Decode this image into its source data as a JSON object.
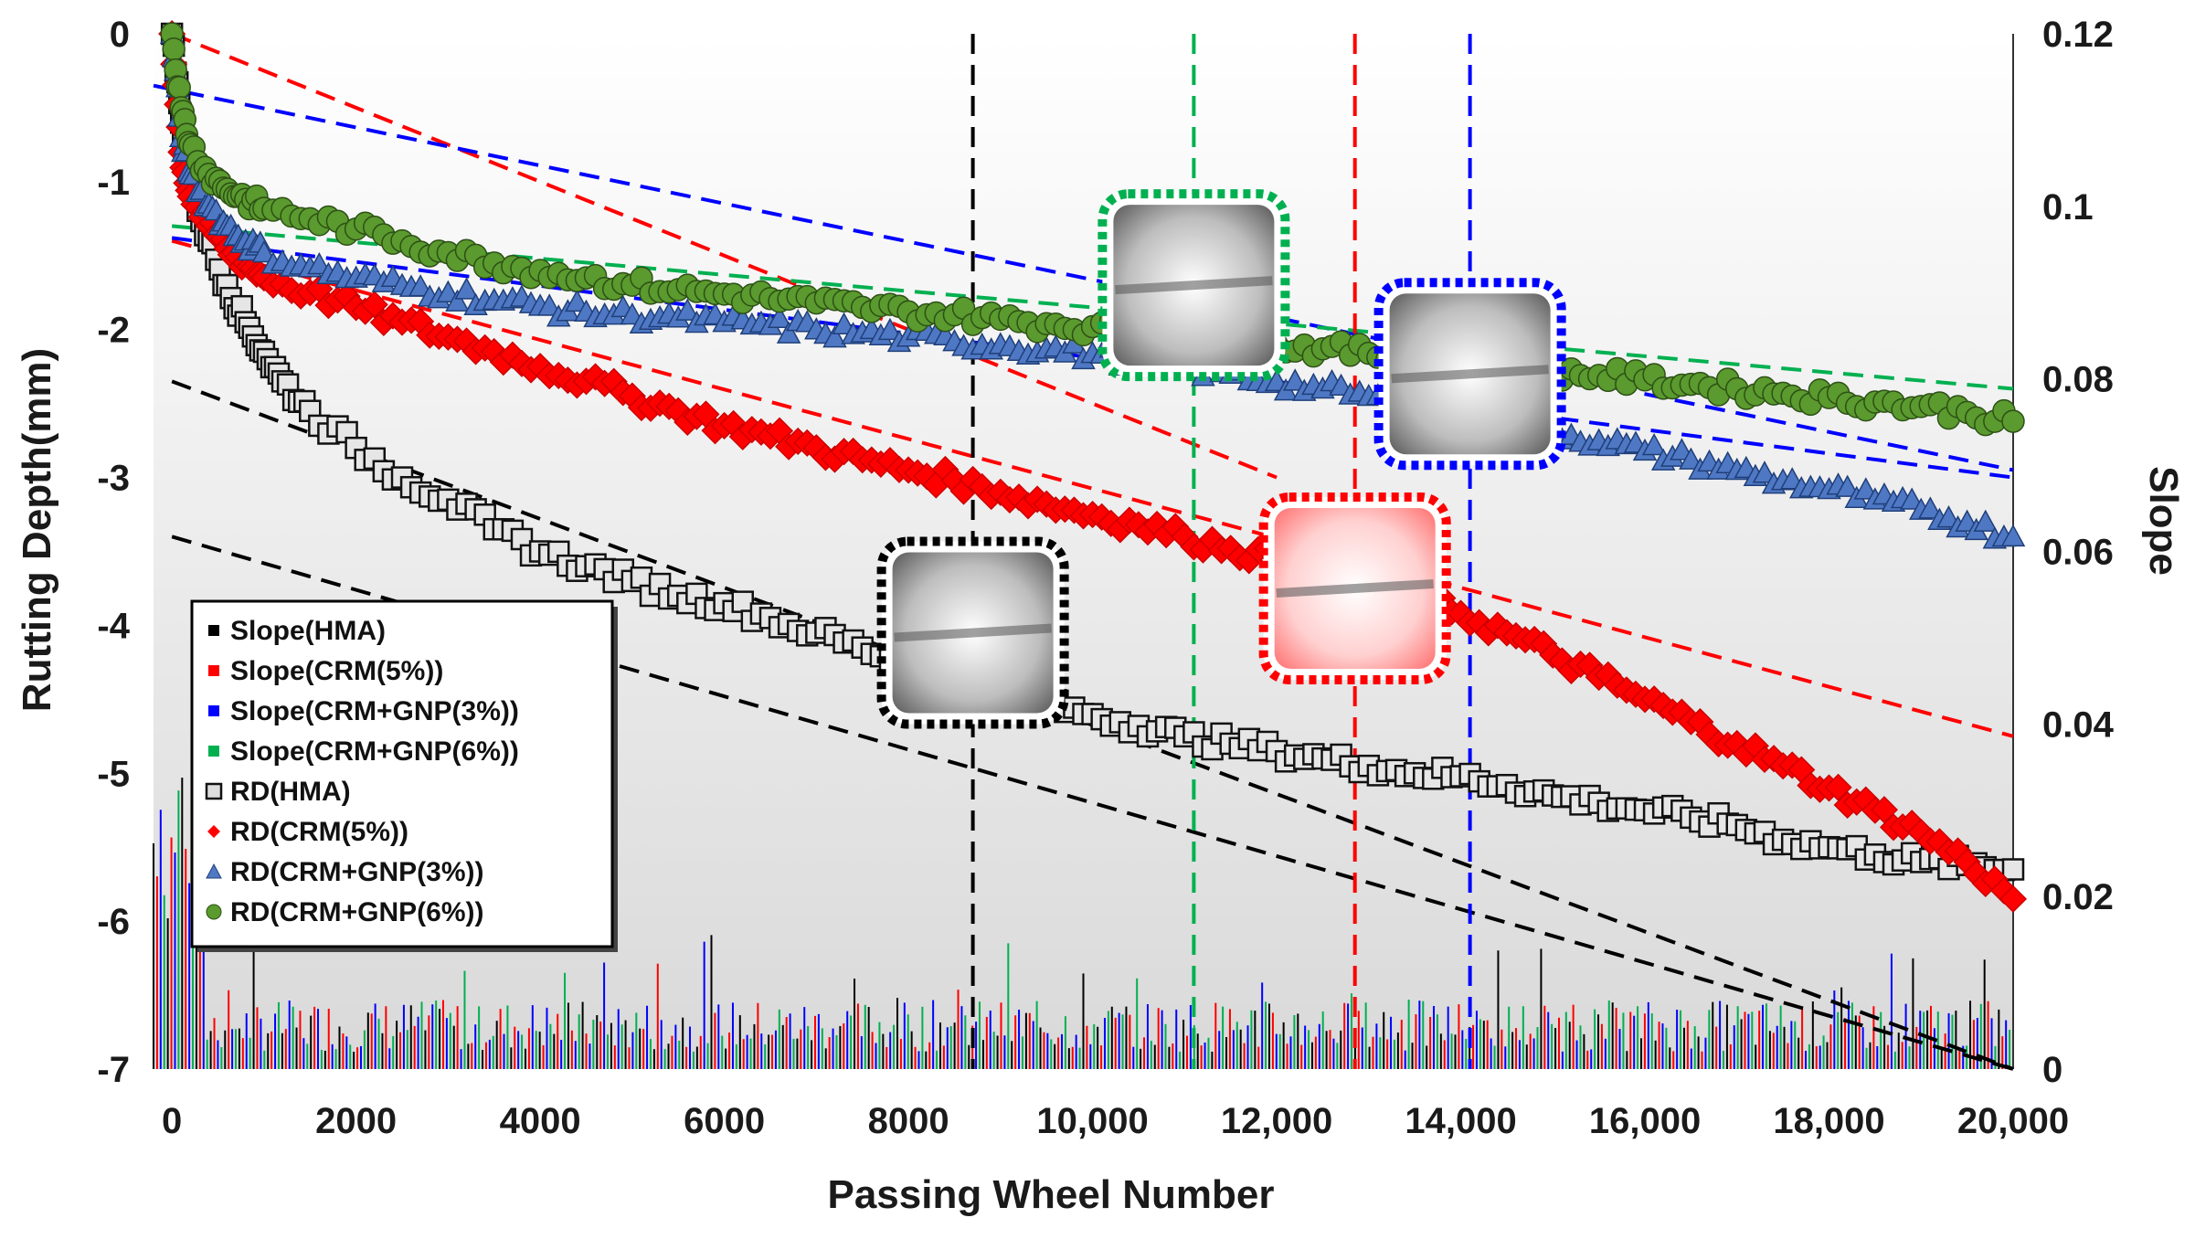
{
  "chart_data": {
    "type": "scatter",
    "xlabel": "Passing Wheel Number",
    "ylabel": "Rutting Depth(mm)",
    "y2label": "Slope",
    "xlim": [
      -200,
      20000
    ],
    "ylim": [
      -7,
      0
    ],
    "y2lim": [
      0,
      0.12
    ],
    "x_ticks": [
      {
        "value": 0,
        "label": "0"
      },
      {
        "value": 2000,
        "label": "2000"
      },
      {
        "value": 4000,
        "label": "4000"
      },
      {
        "value": 6000,
        "label": "6000"
      },
      {
        "value": 8000,
        "label": "8000"
      },
      {
        "value": 10000,
        "label": "10,000"
      },
      {
        "value": 12000,
        "label": "12,000"
      },
      {
        "value": 14000,
        "label": "14,000"
      },
      {
        "value": 16000,
        "label": "16,000"
      },
      {
        "value": 18000,
        "label": "18,000"
      },
      {
        "value": 20000,
        "label": "20,000"
      }
    ],
    "y_ticks": [
      {
        "value": 0,
        "label": "0"
      },
      {
        "value": -1,
        "label": "-1"
      },
      {
        "value": -2,
        "label": "-2"
      },
      {
        "value": -3,
        "label": "-3"
      },
      {
        "value": -4,
        "label": "-4"
      },
      {
        "value": -5,
        "label": "-5"
      },
      {
        "value": -6,
        "label": "-6"
      },
      {
        "value": -7,
        "label": "-7"
      }
    ],
    "y2_ticks": [
      {
        "value": 0.12,
        "label": "0.12"
      },
      {
        "value": 0.1,
        "label": "0.1"
      },
      {
        "value": 0.08,
        "label": "0.08"
      },
      {
        "value": 0.06,
        "label": "0.06"
      },
      {
        "value": 0.04,
        "label": "0.04"
      },
      {
        "value": 0.02,
        "label": "0.02"
      },
      {
        "value": 0,
        "label": "0"
      }
    ],
    "series": [
      {
        "name": "RD(HMA)",
        "marker": "square",
        "color": "#e6e6e6",
        "stroke": "#111111",
        "x": [
          0,
          100,
          200,
          400,
          600,
          800,
          1000,
          1200,
          1500,
          2000,
          2500,
          3000,
          3500,
          4000,
          4500,
          5000,
          5500,
          6000,
          6500,
          7000,
          7500,
          8000,
          8500,
          9000,
          9500,
          10000,
          10500,
          11000,
          11500,
          12000,
          12500,
          13000,
          13500,
          14000,
          14500,
          15000,
          15500,
          16000,
          16500,
          17000,
          17500,
          18000,
          18500,
          19000,
          19500,
          20000
        ],
        "y": [
          0,
          -0.6,
          -1.0,
          -1.4,
          -1.7,
          -1.95,
          -2.15,
          -2.35,
          -2.55,
          -2.8,
          -3.0,
          -3.15,
          -3.35,
          -3.5,
          -3.6,
          -3.7,
          -3.8,
          -3.85,
          -3.95,
          -4.05,
          -4.15,
          -4.25,
          -4.35,
          -4.45,
          -4.55,
          -4.6,
          -4.68,
          -4.75,
          -4.8,
          -4.85,
          -4.9,
          -4.95,
          -5.0,
          -5.02,
          -5.08,
          -5.15,
          -5.2,
          -5.25,
          -5.3,
          -5.35,
          -5.45,
          -5.5,
          -5.55,
          -5.6,
          -5.62,
          -5.65
        ]
      },
      {
        "name": "RD(CRM(5%))",
        "marker": "diamond",
        "color": "#ff0000",
        "stroke": "#cc0000",
        "x": [
          0,
          100,
          200,
          400,
          600,
          800,
          1000,
          1500,
          2000,
          2500,
          3000,
          3500,
          4000,
          4500,
          5000,
          5500,
          6000,
          6500,
          7000,
          7500,
          8000,
          8500,
          9000,
          9500,
          10000,
          10500,
          11000,
          11500,
          12000,
          12500,
          13000,
          13500,
          14000,
          14500,
          15000,
          15500,
          16000,
          16500,
          17000,
          17500,
          18000,
          18500,
          19000,
          19500,
          20000
        ],
        "y": [
          0,
          -0.8,
          -1.1,
          -1.3,
          -1.45,
          -1.55,
          -1.65,
          -1.75,
          -1.85,
          -1.95,
          -2.05,
          -2.15,
          -2.25,
          -2.35,
          -2.45,
          -2.55,
          -2.65,
          -2.72,
          -2.8,
          -2.88,
          -2.95,
          -3.02,
          -3.1,
          -3.18,
          -3.25,
          -3.32,
          -3.4,
          -3.48,
          -3.55,
          -3.62,
          -3.7,
          -3.8,
          -3.92,
          -4.05,
          -4.2,
          -4.35,
          -4.5,
          -4.65,
          -4.8,
          -4.95,
          -5.1,
          -5.25,
          -5.4,
          -5.6,
          -5.85
        ]
      },
      {
        "name": "RD(CRM+GNP(3%))",
        "marker": "triangle",
        "color": "#4f78c4",
        "stroke": "#1f3f7a",
        "x": [
          0,
          100,
          200,
          400,
          600,
          800,
          1000,
          1500,
          2000,
          2500,
          3000,
          3500,
          4000,
          4500,
          5000,
          5500,
          6000,
          6500,
          7000,
          7500,
          8000,
          8500,
          9000,
          9500,
          10000,
          10500,
          11000,
          11500,
          12000,
          12500,
          13000,
          13500,
          14000,
          14500,
          15000,
          15500,
          16000,
          16500,
          17000,
          17500,
          18000,
          18500,
          19000,
          19500,
          20000
        ],
        "y": [
          0,
          -0.7,
          -0.95,
          -1.15,
          -1.3,
          -1.4,
          -1.48,
          -1.58,
          -1.65,
          -1.7,
          -1.75,
          -1.8,
          -1.84,
          -1.88,
          -1.9,
          -1.92,
          -1.95,
          -1.97,
          -2.0,
          -2.02,
          -2.05,
          -2.08,
          -2.1,
          -2.13,
          -2.16,
          -2.2,
          -2.25,
          -2.3,
          -2.35,
          -2.4,
          -2.45,
          -2.5,
          -2.56,
          -2.62,
          -2.68,
          -2.75,
          -2.82,
          -2.88,
          -2.95,
          -3.02,
          -3.08,
          -3.15,
          -3.22,
          -3.3,
          -3.4
        ]
      },
      {
        "name": "RD(CRM+GNP(6%))",
        "marker": "circle",
        "color": "#5a9a2e",
        "stroke": "#2d5016",
        "x": [
          0,
          100,
          200,
          400,
          600,
          800,
          1000,
          1500,
          2000,
          2500,
          3000,
          3500,
          4000,
          4500,
          5000,
          5500,
          6000,
          6500,
          7000,
          7500,
          8000,
          8500,
          9000,
          9500,
          10000,
          10500,
          11000,
          11500,
          12000,
          12500,
          13000,
          13500,
          14000,
          14500,
          15000,
          15500,
          16000,
          16500,
          17000,
          17500,
          18000,
          18500,
          19000,
          19500,
          20000
        ],
        "y": [
          0,
          -0.5,
          -0.75,
          -0.95,
          -1.05,
          -1.12,
          -1.18,
          -1.25,
          -1.32,
          -1.4,
          -1.48,
          -1.55,
          -1.6,
          -1.65,
          -1.7,
          -1.73,
          -1.76,
          -1.79,
          -1.82,
          -1.85,
          -1.88,
          -1.9,
          -1.93,
          -1.96,
          -1.98,
          -2.01,
          -2.04,
          -2.07,
          -2.1,
          -2.13,
          -2.16,
          -2.19,
          -2.22,
          -2.25,
          -2.28,
          -2.31,
          -2.34,
          -2.37,
          -2.4,
          -2.43,
          -2.46,
          -2.49,
          -2.52,
          -2.56,
          -2.62
        ]
      }
    ],
    "fit_lines": [
      {
        "name": "HMA fit",
        "color": "#000000",
        "x": [
          0,
          20000
        ],
        "y": [
          -3.4,
          -7.0
        ]
      },
      {
        "name": "HMA fit 2",
        "color": "#000000",
        "x": [
          0,
          20000
        ],
        "y": [
          -2.35,
          -7.0
        ]
      },
      {
        "name": "CRM(5%) fit",
        "color": "#ff0000",
        "x": [
          0,
          20000
        ],
        "y": [
          -1.4,
          -4.75
        ]
      },
      {
        "name": "CRM(5%) fit 2",
        "color": "#ff0000",
        "x": [
          0,
          12000
        ],
        "y": [
          0,
          -3.0
        ]
      },
      {
        "name": "CRM+GNP(3%) fit",
        "color": "#0000ff",
        "x": [
          -200,
          20000
        ],
        "y": [
          -0.35,
          -2.95
        ]
      },
      {
        "name": "CRM+GNP(3%) fit 2",
        "color": "#0000ff",
        "x": [
          0,
          20000
        ],
        "y": [
          -1.38,
          -3.0
        ]
      },
      {
        "name": "CRM+GNP(6%) fit",
        "color": "#00b050",
        "x": [
          0,
          20000
        ],
        "y": [
          -1.3,
          -2.4
        ]
      }
    ],
    "vlines": [
      {
        "name": "HMA onset",
        "color": "#000000",
        "x": 8700
      },
      {
        "name": "CRM+GNP(6%) onset",
        "color": "#00b050",
        "x": 11100
      },
      {
        "name": "CRM(5%) onset",
        "color": "#ff0000",
        "x": 12850
      },
      {
        "name": "CRM+GNP(3%) onset",
        "color": "#0000ff",
        "x": 14100
      }
    ],
    "legend": {
      "placement": "lower-left",
      "entries": [
        {
          "label": "Slope(HMA)",
          "marker": "square",
          "color": "#000000"
        },
        {
          "label": "Slope(CRM(5%))",
          "marker": "square",
          "color": "#ff0000"
        },
        {
          "label": "Slope(CRM+GNP(3%))",
          "marker": "square",
          "color": "#0000ff"
        },
        {
          "label": "Slope(CRM+GNP(6%))",
          "marker": "square",
          "color": "#00b050"
        },
        {
          "label": "RD(HMA)",
          "marker": "square-open",
          "color": "#111111"
        },
        {
          "label": "RD(CRM(5%))",
          "marker": "diamond",
          "color": "#ff0000"
        },
        {
          "label": "RD(CRM+GNP(3%))",
          "marker": "triangle",
          "color": "#4f78c4"
        },
        {
          "label": "RD(CRM+GNP(6%))",
          "marker": "circle",
          "color": "#5a9a2e"
        }
      ]
    },
    "insets": [
      {
        "name": "inset-hma",
        "border": "#000000",
        "x": 8700,
        "y": -4.05
      },
      {
        "name": "inset-gnp6",
        "border": "#00b050",
        "x": 11100,
        "y": -1.7
      },
      {
        "name": "inset-crm5",
        "border": "#ff0000",
        "x": 12850,
        "y": -3.75
      },
      {
        "name": "inset-gnp3",
        "border": "#0000ff",
        "x": 14100,
        "y": -2.3
      }
    ]
  }
}
